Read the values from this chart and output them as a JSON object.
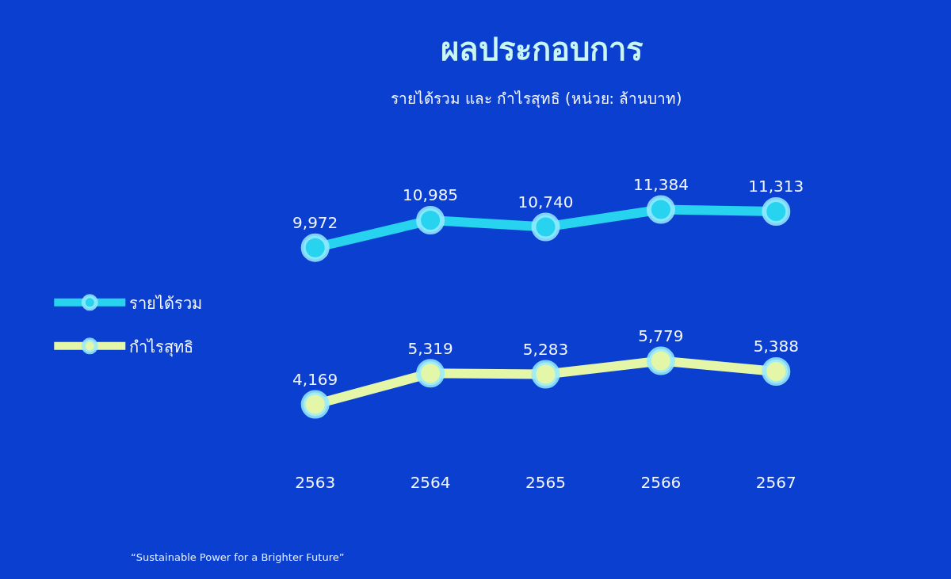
{
  "chart_data": {
    "type": "line",
    "title": "ผลประกอบการ",
    "subtitle": "รายได้รวม และ กำไรสุทธิ (หน่วย: ล้านบาท)",
    "categories": [
      "2563",
      "2564",
      "2565",
      "2566",
      "2567"
    ],
    "series": [
      {
        "name": "รายได้รวม",
        "color": "#27d3ee",
        "values": [
          9972,
          10985,
          10740,
          11384,
          11313
        ],
        "value_labels": [
          "9,972",
          "10,985",
          "10,740",
          "11,384",
          "11,313"
        ]
      },
      {
        "name": "กำไรสุทธิ",
        "color": "#e4f7a8",
        "values": [
          4169,
          5319,
          5283,
          5779,
          5388
        ],
        "value_labels": [
          "4,169",
          "5,319",
          "5,283",
          "5,779",
          "5,388"
        ]
      }
    ],
    "legend": "left",
    "marker": "circle",
    "line_style": "solid",
    "annotations": [
      "“Sustainable Power for a Brighter Future”"
    ]
  }
}
